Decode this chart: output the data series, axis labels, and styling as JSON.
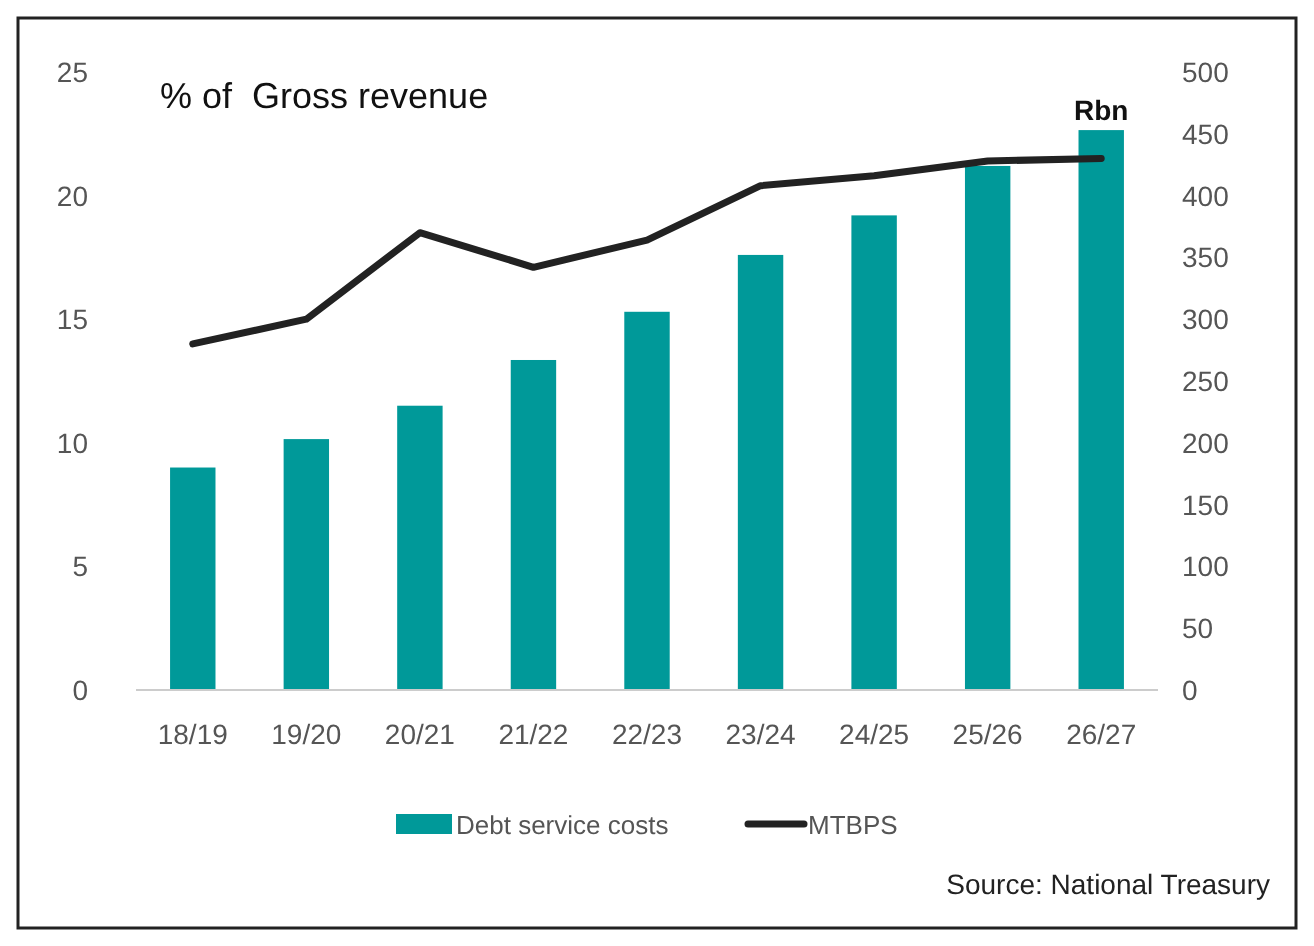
{
  "chart_data": {
    "type": "bar",
    "ylabel": "% of  Gross revenue",
    "y2label": "Rbn",
    "categories": [
      "18/19",
      "19/20",
      "20/21",
      "21/22",
      "22/23",
      "23/24",
      "24/25",
      "25/26",
      "26/27"
    ],
    "series": [
      {
        "name": "Debt service costs",
        "axis": "y2",
        "color": "#009999",
        "values": [
          180,
          203,
          230,
          267,
          306,
          352,
          384,
          424,
          453
        ]
      },
      {
        "name": "MTBPS",
        "type": "line",
        "axis": "y",
        "color": "#222222",
        "values": [
          14.0,
          15.0,
          18.5,
          17.1,
          18.2,
          20.4,
          20.8,
          21.4,
          21.5
        ]
      }
    ],
    "ylim": [
      0,
      25
    ],
    "yticks": [
      0,
      5,
      10,
      15,
      20,
      25
    ],
    "y2lim": [
      0,
      500
    ],
    "y2ticks": [
      0,
      50,
      100,
      150,
      200,
      250,
      300,
      350,
      400,
      450,
      500
    ],
    "legend": "bottom",
    "grid": false,
    "marker": "none",
    "line_style": "solid",
    "annotations": [
      "Source: National Treasury"
    ]
  }
}
